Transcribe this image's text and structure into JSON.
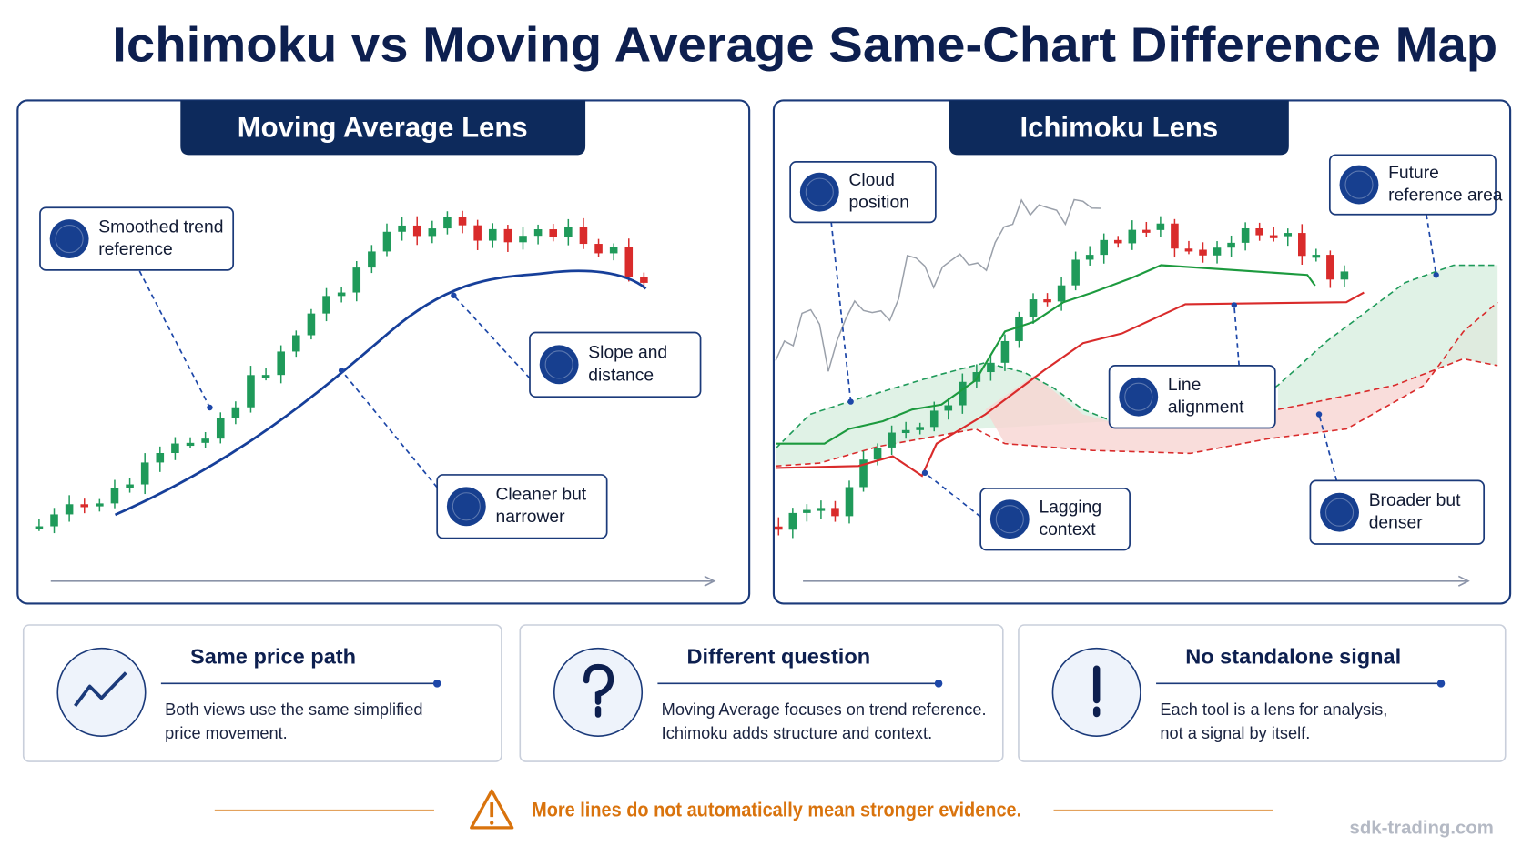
{
  "title": "Ichimoku vs Moving Average Same-Chart Difference Map",
  "panels": [
    {
      "title": "Moving Average Lens",
      "callouts": [
        {
          "lines": [
            "Smoothed trend",
            "reference"
          ]
        },
        {
          "lines": [
            "Slope and",
            "distance"
          ]
        },
        {
          "lines": [
            "Cleaner but",
            "narrower"
          ]
        }
      ]
    },
    {
      "title": "Ichimoku Lens",
      "callouts": [
        {
          "lines": [
            "Cloud",
            "position"
          ]
        },
        {
          "lines": [
            "Future",
            "reference area"
          ]
        },
        {
          "lines": [
            "Line",
            "alignment"
          ]
        },
        {
          "lines": [
            "Lagging",
            "context"
          ]
        },
        {
          "lines": [
            "Broader but",
            "denser"
          ]
        }
      ]
    }
  ],
  "cards": [
    {
      "title": "Same price path",
      "lines": [
        "Both views use the same simplified",
        "price movement."
      ]
    },
    {
      "title": "Different question",
      "lines": [
        "Moving Average focuses on trend reference.",
        "Ichimoku adds structure and context."
      ]
    },
    {
      "title": "No standalone signal",
      "lines": [
        "Each tool is a lens for analysis,",
        "not a signal by itself."
      ]
    }
  ],
  "warning": "More lines do not automatically mean stronger evidence.",
  "footer": "sdk-trading.com"
}
